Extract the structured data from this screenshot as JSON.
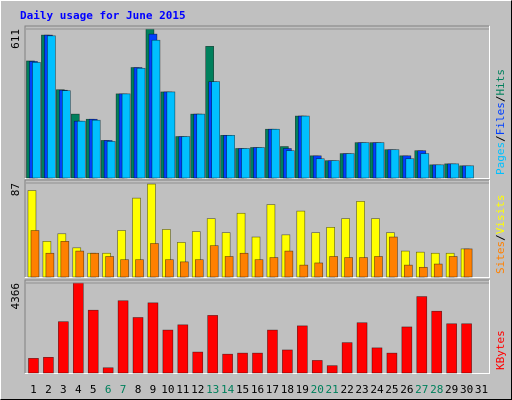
{
  "chart_data": [
    {
      "type": "bar",
      "title": "Daily usage for June 2015",
      "categories": [
        "1",
        "2",
        "3",
        "4",
        "5",
        "6",
        "7",
        "8",
        "9",
        "10",
        "11",
        "12",
        "13",
        "14",
        "15",
        "16",
        "17",
        "18",
        "19",
        "20",
        "21",
        "22",
        "23",
        "24",
        "25",
        "26",
        "27",
        "28",
        "29",
        "30",
        "31"
      ],
      "label_colors": [
        "#000000",
        "#000000",
        "#000000",
        "#000000",
        "#000000",
        "#00805c",
        "#00805c",
        "#000000",
        "#000000",
        "#000000",
        "#000000",
        "#000000",
        "#00805c",
        "#00805c",
        "#000000",
        "#000000",
        "#000000",
        "#000000",
        "#000000",
        "#00805c",
        "#00805c",
        "#000000",
        "#000000",
        "#000000",
        "#000000",
        "#000000",
        "#00805c",
        "#00805c",
        "#000000",
        "#000000",
        "#000000"
      ],
      "legend_separator": "/",
      "series": [
        {
          "name": "Hits",
          "color": "#00805c",
          "values": [
            480,
            586,
            362,
            262,
            241,
            154,
            345,
            453,
            611,
            353,
            170,
            262,
            540,
            175,
            121,
            125,
            200,
            129,
            254,
            91,
            71,
            100,
            145,
            145,
            116,
            91,
            112,
            54,
            58,
            50,
            0
          ]
        },
        {
          "name": "Files",
          "color": "#0040ff",
          "values": [
            478,
            586,
            360,
            233,
            241,
            154,
            345,
            453,
            590,
            353,
            170,
            262,
            395,
            175,
            121,
            125,
            200,
            121,
            254,
            91,
            71,
            100,
            145,
            145,
            116,
            91,
            112,
            54,
            58,
            50,
            0
          ]
        },
        {
          "name": "Pages",
          "color": "#00c0ff",
          "values": [
            474,
            583,
            358,
            233,
            237,
            150,
            345,
            450,
            565,
            353,
            170,
            262,
            395,
            175,
            121,
            125,
            200,
            112,
            254,
            79,
            71,
            100,
            145,
            145,
            116,
            79,
            100,
            54,
            58,
            50,
            0
          ]
        }
      ],
      "ylim": [
        0,
        611
      ],
      "yticks": [
        611
      ]
    },
    {
      "type": "bar",
      "legend_separator": "/",
      "series": [
        {
          "name": "Visits",
          "color": "#ffff00",
          "values": [
            80,
            33,
            40,
            27,
            22,
            22,
            43,
            73,
            86,
            44,
            32,
            42,
            54,
            41,
            59,
            37,
            67,
            39,
            61,
            41,
            46,
            54,
            70,
            54,
            41,
            24,
            23,
            22,
            22,
            26,
            0
          ]
        },
        {
          "name": "Sites",
          "color": "#ff8000",
          "values": [
            43,
            22,
            33,
            24,
            22,
            19,
            16,
            16,
            31,
            16,
            14,
            16,
            29,
            19,
            22,
            16,
            18,
            24,
            11,
            13,
            19,
            18,
            18,
            19,
            37,
            11,
            9,
            12,
            19,
            26,
            0
          ]
        }
      ],
      "ylim": [
        0,
        87
      ],
      "yticks": [
        87
      ]
    },
    {
      "type": "bar",
      "series": [
        {
          "name": "KBytes",
          "color": "#ff0000",
          "values": [
            711,
            762,
            2489,
            4366,
            3047,
            254,
            3505,
            2692,
            3403,
            2083,
            2337,
            1016,
            2794,
            914,
            965,
            965,
            2083,
            1118,
            2286,
            610,
            356,
            1473,
            2438,
            1219,
            965,
            2235,
            3708,
            2997,
            2388,
            2388,
            0
          ]
        }
      ],
      "ylim": [
        0,
        4366
      ],
      "yticks": [
        4366
      ]
    }
  ]
}
